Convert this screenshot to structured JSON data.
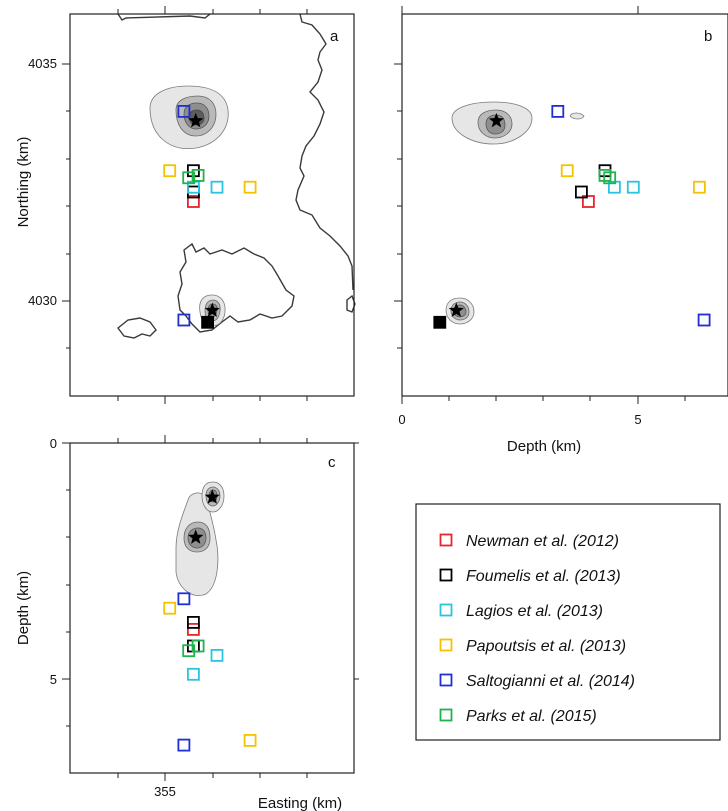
{
  "panels": {
    "a": {
      "letter": "a"
    },
    "b": {
      "letter": "b"
    },
    "c": {
      "letter": "c"
    }
  },
  "axes": {
    "northing_label": "Northing (km)",
    "depth_label_b": "Depth (km)",
    "depth_label_c": "Depth (km)",
    "easting_label": "Easting (km)",
    "northing_ticks": [
      "4035",
      "4030"
    ],
    "depth_ticks_b": [
      "0",
      "5"
    ],
    "depth_ticks_c": [
      "0",
      "5"
    ],
    "easting_ticks": [
      "355"
    ]
  },
  "legend": {
    "entries": [
      {
        "label": "Newman et al. (2012)",
        "color": "#e8262b"
      },
      {
        "label": "Foumelis et al. (2013)",
        "color": "#000000"
      },
      {
        "label": "Lagios et al. (2013)",
        "color": "#2ac4e0"
      },
      {
        "label": "Papoutsis et al. (2013)",
        "color": "#f5c200"
      },
      {
        "label": "Saltogianni et al. (2014)",
        "color": "#1f2fd6"
      },
      {
        "label": "Parks et al. (2015)",
        "color": "#22b24c"
      }
    ]
  },
  "chart_data": {
    "type": "scatter",
    "units": {
      "easting": "km",
      "northing": "km",
      "depth": "km"
    },
    "sources": [
      {
        "name": "Newman et al. (2012)",
        "color": "#e8262b",
        "easting": 355.6,
        "northing": 4032.1,
        "depth": 3.95
      },
      {
        "name": "Foumelis et al. (2013)",
        "color": "#000000",
        "easting": 355.6,
        "northing": 4032.3,
        "depth": 3.8
      },
      {
        "name": "Foumelis et al. (2013)",
        "color": "#000000",
        "easting": 355.6,
        "northing": 4032.75,
        "depth": 4.3
      },
      {
        "name": "Lagios et al. (2013)",
        "color": "#2ac4e0",
        "easting": 356.1,
        "northing": 4032.4,
        "depth": 4.5
      },
      {
        "name": "Lagios et al. (2013)",
        "color": "#2ac4e0",
        "easting": 355.6,
        "northing": 4032.4,
        "depth": 4.9
      },
      {
        "name": "Papoutsis et al. (2013)",
        "color": "#f5c200",
        "easting": 355.1,
        "northing": 4032.75,
        "depth": 3.5
      },
      {
        "name": "Papoutsis et al. (2013)",
        "color": "#f5c200",
        "easting": 356.8,
        "northing": 4032.4,
        "depth": 6.3
      },
      {
        "name": "Saltogianni et al. (2014)",
        "color": "#1f2fd6",
        "easting": 355.4,
        "northing": 4034.0,
        "depth": 3.3
      },
      {
        "name": "Saltogianni et al. (2014)",
        "color": "#1f2fd6",
        "easting": 355.4,
        "northing": 4029.6,
        "depth": 6.4
      },
      {
        "name": "Parks et al. (2015)",
        "color": "#22b24c",
        "easting": 355.7,
        "northing": 4032.65,
        "depth": 4.3
      },
      {
        "name": "Parks et al. (2015)",
        "color": "#22b24c",
        "easting": 355.5,
        "northing": 4032.6,
        "depth": 4.4
      }
    ],
    "centroids": [
      {
        "marker": "star",
        "easting": 355.65,
        "northing": 4033.8,
        "depth": 2.0
      },
      {
        "marker": "star",
        "easting": 356.0,
        "northing": 4029.8,
        "depth": 1.15
      }
    ],
    "other_points": [
      {
        "marker": "filled-square",
        "color": "#000000",
        "easting": 355.9,
        "northing": 4029.55,
        "depth": 0.8
      }
    ],
    "map_extent": {
      "easting": [
        353.0,
        359.0
      ],
      "northing": [
        4028.3,
        4036.1
      ]
    },
    "depth_range": [
      0,
      7.0
    ]
  }
}
